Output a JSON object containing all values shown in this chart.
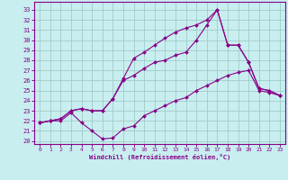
{
  "bg_color": "#c8eef0",
  "grid_color": "#a0ccc8",
  "line_color": "#880088",
  "xlabel": "Windchill (Refroidissement éolien,°C)",
  "x_ticks": [
    0,
    1,
    2,
    3,
    4,
    5,
    6,
    7,
    8,
    9,
    10,
    11,
    12,
    13,
    14,
    15,
    16,
    17,
    18,
    19,
    20,
    21,
    22,
    23
  ],
  "y_ticks": [
    20,
    21,
    22,
    23,
    24,
    25,
    26,
    27,
    28,
    29,
    30,
    31,
    32,
    33
  ],
  "xlim": [
    -0.5,
    23.5
  ],
  "ylim": [
    19.7,
    33.8
  ],
  "curve_min_x": [
    0,
    1,
    2,
    3,
    4,
    5,
    6,
    7,
    8,
    9,
    10,
    11,
    12,
    13,
    14,
    15,
    16,
    17,
    18,
    19,
    20,
    21,
    22,
    23
  ],
  "curve_min_y": [
    21.8,
    22.0,
    22.0,
    22.8,
    21.8,
    21.0,
    20.2,
    20.3,
    21.2,
    21.5,
    22.5,
    23.0,
    23.5,
    24.0,
    24.3,
    25.0,
    25.5,
    26.0,
    26.5,
    26.8,
    27.0,
    25.0,
    24.8,
    24.5
  ],
  "curve_mid_x": [
    0,
    1,
    2,
    3,
    4,
    5,
    6,
    7,
    8,
    9,
    10,
    11,
    12,
    13,
    14,
    15,
    16,
    17,
    18,
    19,
    20,
    21,
    22,
    23
  ],
  "curve_mid_y": [
    21.8,
    22.0,
    22.2,
    23.0,
    23.2,
    23.0,
    23.0,
    24.2,
    26.0,
    26.5,
    27.2,
    27.8,
    28.0,
    28.5,
    28.8,
    30.0,
    31.5,
    33.0,
    29.5,
    29.5,
    27.8,
    25.2,
    25.0,
    24.5
  ],
  "curve_max_x": [
    0,
    1,
    2,
    3,
    4,
    5,
    6,
    7,
    8,
    9,
    10,
    11,
    12,
    13,
    14,
    15,
    16,
    17,
    18,
    19,
    20,
    21,
    22,
    23
  ],
  "curve_max_y": [
    21.8,
    22.0,
    22.2,
    23.0,
    23.2,
    23.0,
    23.0,
    24.2,
    26.2,
    28.2,
    28.8,
    29.5,
    30.2,
    30.8,
    31.2,
    31.5,
    32.0,
    33.0,
    29.5,
    29.5,
    27.8,
    25.2,
    25.0,
    24.5
  ]
}
